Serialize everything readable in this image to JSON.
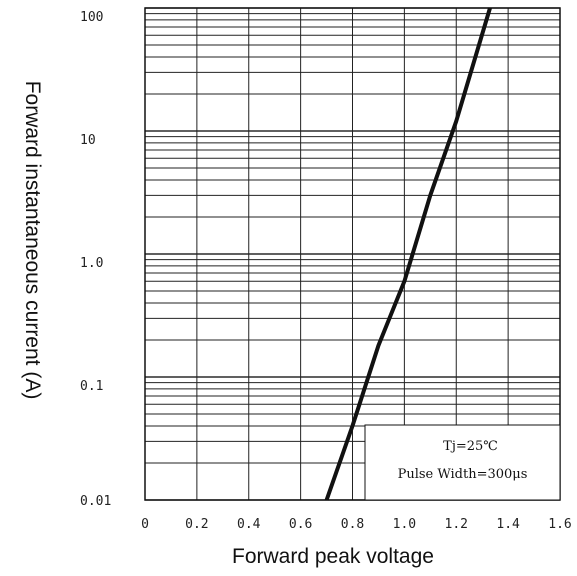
{
  "chart_data": {
    "type": "line",
    "xlabel": "Forward peak voltage",
    "ylabel": "Forward instantaneous current (A)",
    "x_ticks": [
      "0",
      "0.2",
      "0.4",
      "0.6",
      "0.8",
      "1.0",
      "1.2",
      "1.4",
      "1.6"
    ],
    "y_ticks": [
      "0.01",
      "0.1",
      "1.0",
      "10",
      "100"
    ],
    "xlim": [
      0,
      1.6
    ],
    "ylim": [
      0.01,
      100
    ],
    "yscale": "log",
    "grid": true,
    "legend_position": "bottom-right",
    "annotation": {
      "line1": "Tj=25℃",
      "line2": "Pulse Width=300μs"
    },
    "series": [
      {
        "points": [
          {
            "x": 0.7,
            "y": 0.01
          },
          {
            "x": 0.8,
            "y": 0.04
          },
          {
            "x": 0.9,
            "y": 0.18
          },
          {
            "x": 1.0,
            "y": 0.6
          },
          {
            "x": 1.1,
            "y": 3.0
          },
          {
            "x": 1.2,
            "y": 12
          },
          {
            "x": 1.33,
            "y": 100
          }
        ]
      }
    ]
  }
}
